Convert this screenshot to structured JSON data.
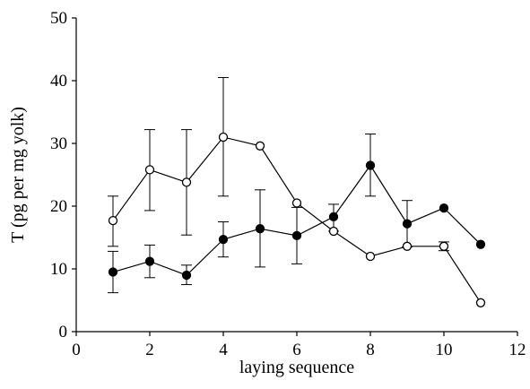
{
  "chart_data": {
    "type": "line",
    "title": "",
    "xlabel": "laying sequence",
    "ylabel": "T (pg per mg yolk)",
    "xlim": [
      0,
      12
    ],
    "ylim": [
      0,
      50
    ],
    "x_ticks": [
      "0",
      "2",
      "4",
      "6",
      "8",
      "10",
      "12"
    ],
    "y_ticks": [
      "0",
      "10",
      "20",
      "30",
      "40",
      "50"
    ],
    "grid": false,
    "legend": "none",
    "series": [
      {
        "marker": "open-circle",
        "color": "#000000",
        "x": [
          1,
          2,
          3,
          4,
          5,
          6,
          7,
          8,
          9,
          10,
          11
        ],
        "y": [
          17.7,
          25.8,
          23.8,
          31.0,
          29.6,
          20.5,
          16.0,
          12.0,
          13.6,
          13.6,
          4.6
        ],
        "err_low": [
          13.6,
          19.3,
          15.4,
          21.6,
          null,
          null,
          null,
          null,
          null,
          12.9,
          null
        ],
        "err_high": [
          21.6,
          32.2,
          32.2,
          40.5,
          null,
          null,
          null,
          null,
          null,
          14.3,
          null
        ]
      },
      {
        "marker": "filled-circle",
        "color": "#000000",
        "x": [
          1,
          2,
          3,
          4,
          5,
          6,
          7,
          8,
          9,
          10,
          11
        ],
        "y": [
          9.5,
          11.2,
          9.0,
          14.7,
          16.4,
          15.3,
          18.3,
          26.5,
          17.2,
          19.7,
          13.9
        ],
        "err_low": [
          6.2,
          8.6,
          7.5,
          11.9,
          10.3,
          10.8,
          16.0,
          21.6,
          13.5,
          null,
          null
        ],
        "err_high": [
          12.8,
          13.8,
          10.6,
          17.5,
          22.6,
          19.8,
          20.3,
          31.5,
          20.9,
          null,
          null
        ]
      }
    ]
  }
}
